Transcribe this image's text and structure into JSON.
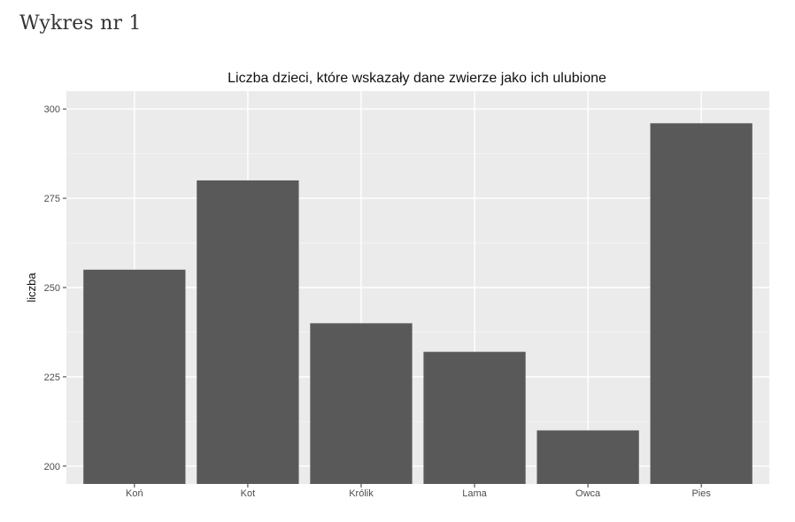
{
  "page": {
    "heading": "Wykres nr 1"
  },
  "chart_data": {
    "type": "bar",
    "title": "Liczba dzieci, które wskazały dane zwierze jako ich ulubione",
    "xlabel": "",
    "ylabel": "liczba",
    "categories": [
      "Koń",
      "Kot",
      "Królik",
      "Lama",
      "Owca",
      "Pies"
    ],
    "values": [
      255,
      280,
      240,
      232,
      210,
      296
    ],
    "ylim": [
      195,
      305
    ],
    "yticks": [
      200,
      225,
      250,
      275,
      300
    ],
    "grid": true,
    "legend": "none",
    "colors": {
      "bar": "#595959",
      "panel": "#ebebeb",
      "grid_major": "#ffffff",
      "grid_minor": "#f5f5f5",
      "tick": "#333333"
    }
  }
}
